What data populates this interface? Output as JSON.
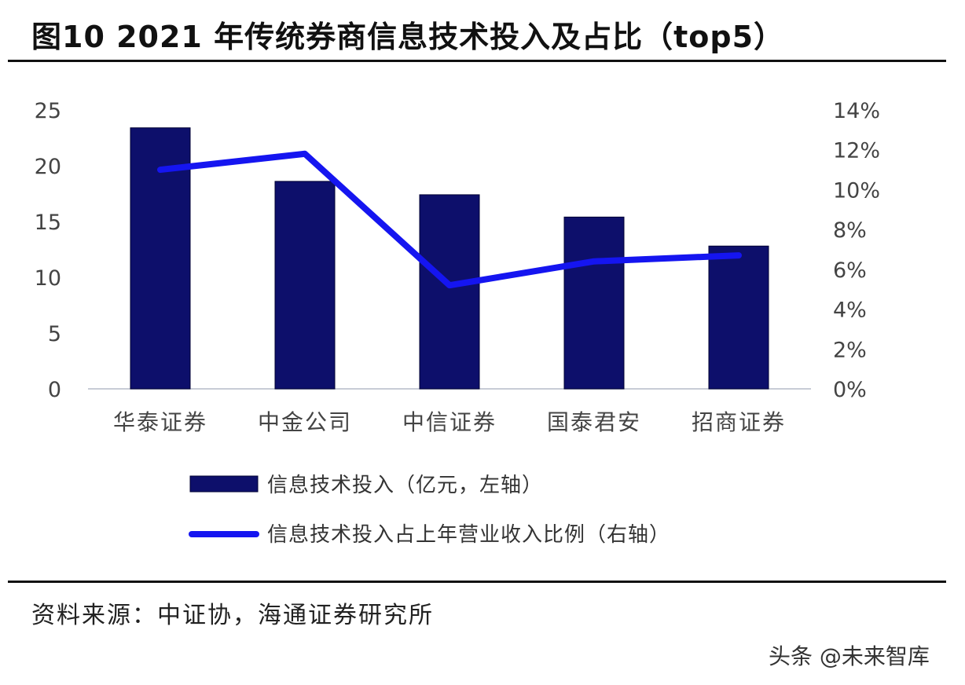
{
  "figure": {
    "title": "图10 2021 年传统券商信息技术投入及占比（top5）",
    "source": "资料来源：中证协，海通证券研究所",
    "watermark": "头条 @未来智库"
  },
  "chart_data": {
    "type": "bar+line",
    "title": "图10 2021 年传统券商信息技术投入及占比（top5）",
    "categories": [
      "华泰证券",
      "中金公司",
      "中信证券",
      "国泰君安",
      "招商证券"
    ],
    "series": [
      {
        "name": "信息技术投入（亿元，左轴）",
        "type": "bar",
        "axis": "left",
        "color": "#0d0f6b",
        "values": [
          23.4,
          18.6,
          17.4,
          15.4,
          12.8
        ]
      },
      {
        "name": "信息技术投入占上年营业收入比例（右轴）",
        "type": "line",
        "axis": "right",
        "color": "#1515f0",
        "values": [
          11.0,
          11.8,
          5.2,
          6.4,
          6.7
        ]
      }
    ],
    "left_axis": {
      "min": 0,
      "max": 25,
      "ticks": [
        "0",
        "5",
        "10",
        "15",
        "20",
        "25"
      ]
    },
    "right_axis": {
      "min": 0,
      "max": 14,
      "ticks": [
        "0%",
        "2%",
        "4%",
        "6%",
        "8%",
        "10%",
        "12%",
        "14%"
      ]
    },
    "grid": false,
    "legend_position": "bottom"
  }
}
